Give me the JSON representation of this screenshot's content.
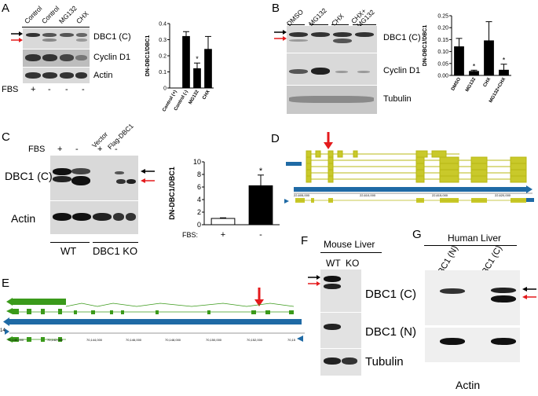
{
  "panels": {
    "A": {
      "letter": "A",
      "lanes": [
        "Control",
        "Control",
        "MG132",
        "CHX"
      ],
      "rows": [
        "DBC1 (C)",
        "Cyclin D1",
        "Actin"
      ],
      "fbs_label": "FBS",
      "fbs": [
        "+",
        "-",
        "-",
        "-"
      ]
    },
    "B": {
      "letter": "B",
      "lanes": [
        "DMSO",
        "MG132",
        "CHX",
        "CHX+\nMG132"
      ],
      "lane_line1": [
        "DMSO",
        "MG132",
        "CHX",
        "CHX+"
      ],
      "lane_line2": [
        "",
        "",
        "",
        "MG132"
      ],
      "rows": [
        "DBC1 (C)",
        "Cyclin D1",
        "Tubulin"
      ]
    },
    "C": {
      "letter": "C",
      "lanes": [
        "Vector",
        "Flag-DBC1"
      ],
      "fbs_label": "FBS",
      "fbs": [
        "+",
        "-",
        "+",
        "-"
      ],
      "rows": [
        "DBC1 (C)",
        "Actin"
      ],
      "groups": [
        "WT",
        "DBC1 KO"
      ],
      "fbs_axis_label": "FBS:"
    },
    "D": {
      "letter": "D"
    },
    "E": {
      "letter": "E",
      "ticks": [
        "70,140,000",
        "70,142,000",
        "70,144,000",
        "70,146,000",
        "70,148,000",
        "70,150,000",
        "70,152,000",
        "70,15"
      ],
      "side_number": "14"
    },
    "F": {
      "letter": "F",
      "title": "Mouse Liver",
      "lanes": [
        "WT",
        "KO"
      ],
      "rows": [
        "DBC1 (C)",
        "DBC1 (N)",
        "Tubulin"
      ]
    },
    "G": {
      "letter": "G",
      "title": "Human Liver",
      "lanes": [
        "DBC1 (N)",
        "DBC1 (C)"
      ],
      "bottom_label": "Actin"
    }
  },
  "chart_data": [
    {
      "type": "bar",
      "panel": "A",
      "categories": [
        "Control (+)",
        "Control (-)",
        "MG132",
        "CHX"
      ],
      "values": [
        0.0,
        0.32,
        0.12,
        0.24
      ],
      "errors": [
        0.0,
        0.03,
        0.035,
        0.08
      ],
      "significance": [
        "",
        "",
        "*",
        ""
      ],
      "ylabel": "DN-DBC1/DBC1",
      "ylim": [
        0,
        0.4
      ],
      "yticks": [
        "0",
        "0.1",
        "0.2",
        "0.3",
        "0.4"
      ],
      "bar_color": "#000000"
    },
    {
      "type": "bar",
      "panel": "B",
      "categories": [
        "DMSO",
        "MG132",
        "CHX",
        "MG132+CHX"
      ],
      "values": [
        0.12,
        0.017,
        0.145,
        0.022
      ],
      "errors": [
        0.035,
        0.005,
        0.08,
        0.025
      ],
      "significance": [
        "",
        "*",
        "",
        "*"
      ],
      "ylabel": "DN-DBC1/DBC1",
      "ylim": [
        0,
        0.25
      ],
      "yticks": [
        "0.00",
        "0.05",
        "0.10",
        "0.15",
        "0.20",
        "0.25"
      ],
      "bar_color": "#000000"
    },
    {
      "type": "bar",
      "panel": "C",
      "categories": [
        "+",
        "-"
      ],
      "values": [
        1.0,
        6.2
      ],
      "errors": [
        0.1,
        1.7
      ],
      "significance": [
        "",
        "*"
      ],
      "ylabel": "DN-DBC1/DBC1",
      "ylim": [
        0,
        10
      ],
      "yticks": [
        "0",
        "2",
        "4",
        "6",
        "8",
        "10"
      ],
      "bar_colors": [
        "#ffffff",
        "#000000"
      ]
    }
  ],
  "colors": {
    "arrow_black": "#000000",
    "arrow_red": "#e41a1c",
    "gene_yellow": "#b8b814",
    "gene_green": "#3a9a1a",
    "track_blue": "#1f6aa5"
  }
}
